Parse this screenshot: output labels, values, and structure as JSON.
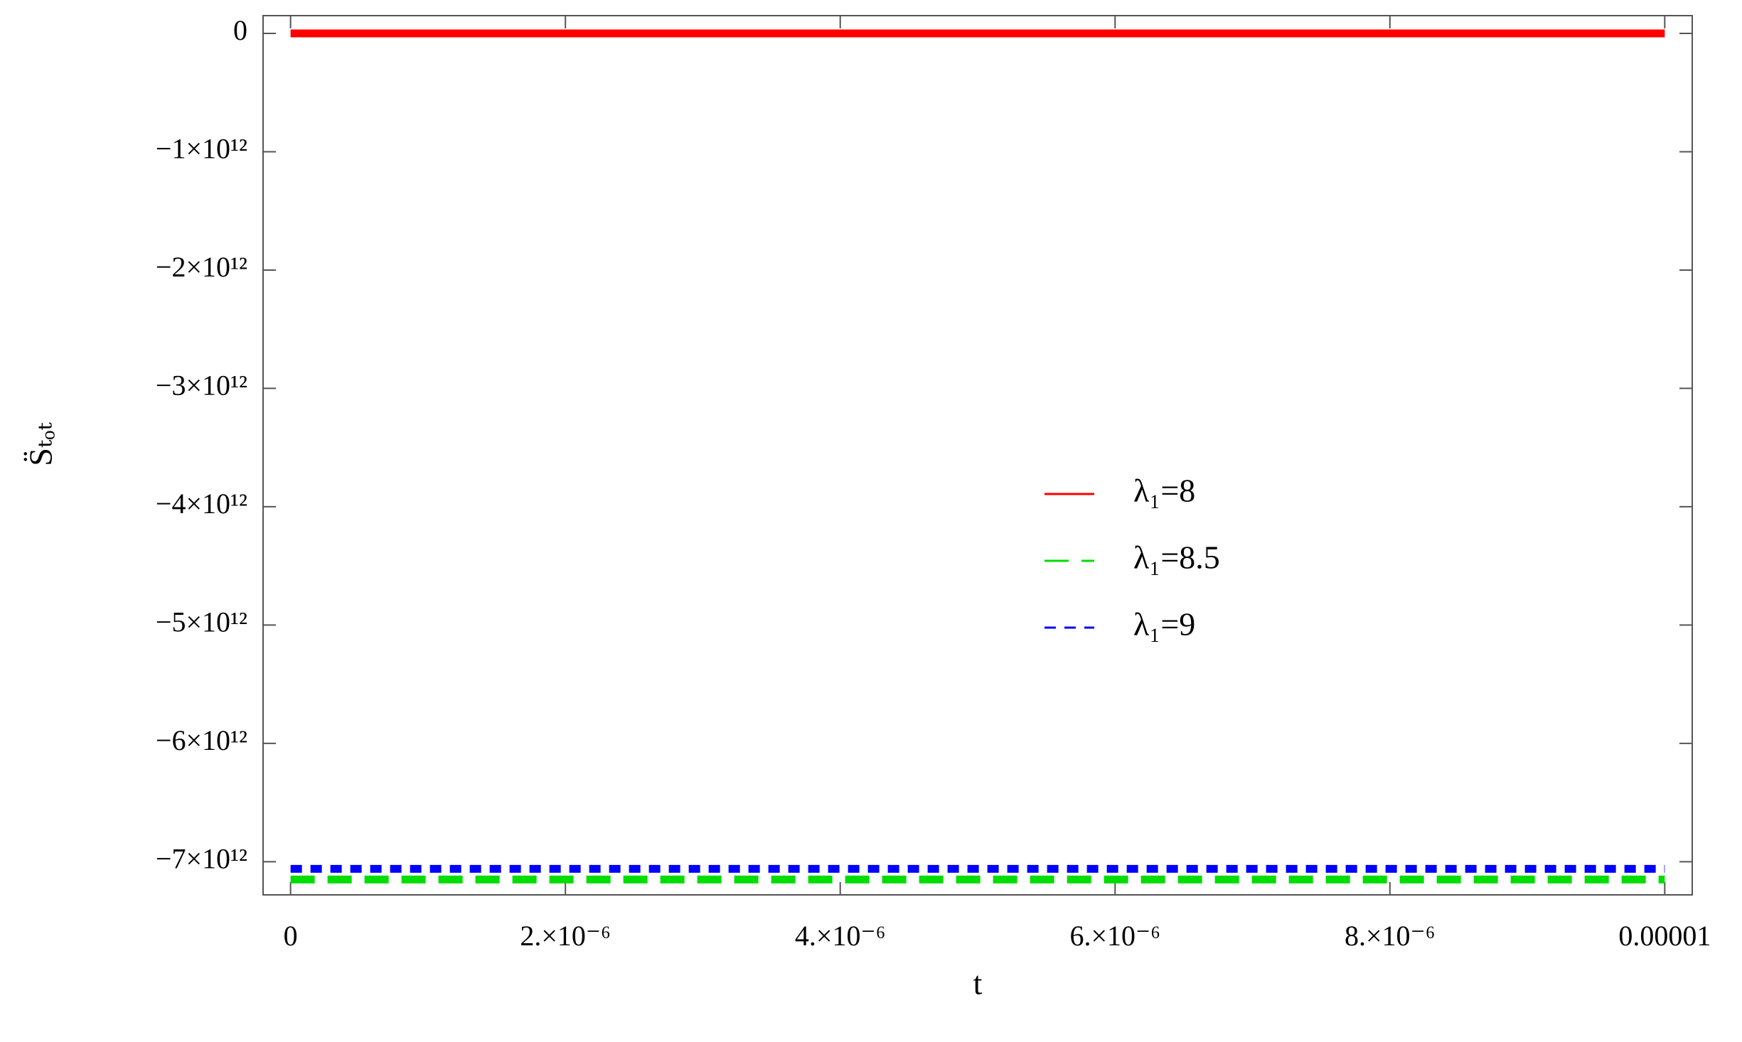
{
  "chart_data": {
    "type": "line",
    "xlabel": "t",
    "ylabel": "S̈ₜₒₜ",
    "xlim": [
      -2e-07,
      1.02e-05
    ],
    "ylim": [
      -7280000000000,
      150000000000
    ],
    "xticks": [
      0,
      {
        "value": 2e-06,
        "label": "2.×10⁻⁶"
      },
      {
        "value": 4e-06,
        "label": "4.×10⁻⁶"
      },
      {
        "value": 6e-06,
        "label": "6.×10⁻⁶"
      },
      {
        "value": 8e-06,
        "label": "8.×10⁻⁶"
      },
      1e-05
    ],
    "yticks": [
      0,
      {
        "value": -1000000000000,
        "label": "−1×10¹²"
      },
      {
        "value": -2000000000000,
        "label": "−2×10¹²"
      },
      {
        "value": -3000000000000,
        "label": "−3×10¹²"
      },
      {
        "value": -4000000000000,
        "label": "−4×10¹²"
      },
      {
        "value": -5000000000000,
        "label": "−5×10¹²"
      },
      {
        "value": -6000000000000,
        "label": "−6×10¹²"
      },
      {
        "value": -7000000000000,
        "label": "−7×10¹²"
      }
    ],
    "legend": "right",
    "series": [
      {
        "name": "λ₁=8",
        "color": "#ff0000",
        "style": "solid",
        "x": [
          0,
          1e-05
        ],
        "values": [
          0,
          0
        ]
      },
      {
        "name": "λ₁=8.5",
        "color": "#00dd00",
        "style": "dashed",
        "x": [
          0,
          1e-05
        ],
        "values": [
          -7150000000000,
          -7150000000000
        ]
      },
      {
        "name": "λ₁=9",
        "color": "#0000ff",
        "style": "dotted",
        "x": [
          0,
          1e-05
        ],
        "values": [
          -7060000000000,
          -7060000000000
        ]
      }
    ]
  }
}
